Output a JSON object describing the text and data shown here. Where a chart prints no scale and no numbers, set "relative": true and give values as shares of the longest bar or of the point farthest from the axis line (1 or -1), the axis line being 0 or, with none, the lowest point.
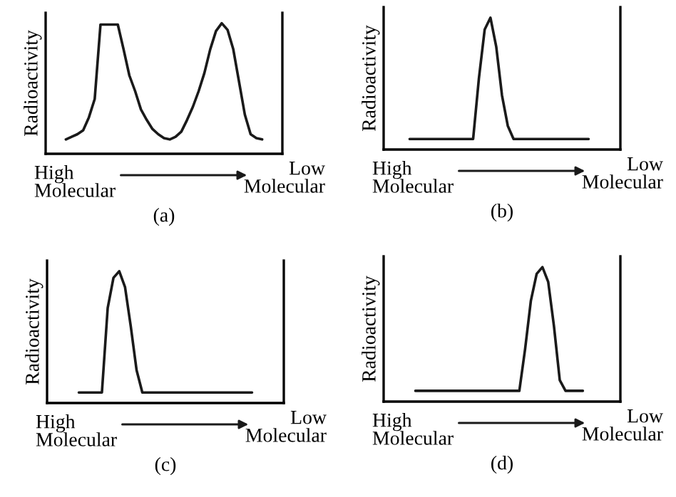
{
  "chart_data": [
    {
      "type": "line",
      "relative": true,
      "ylabel": "Radioactivity",
      "annotations": [
        "High\nMolecular",
        "Low\nMolecular",
        "(a)"
      ],
      "color": "#1a1a1a",
      "categories": [
        null,
        null,
        null,
        null,
        null,
        null,
        null,
        null,
        null,
        null,
        null,
        null,
        null,
        null,
        null,
        null,
        null,
        null,
        null,
        null,
        null,
        null,
        null,
        null,
        null,
        null,
        null,
        null,
        null,
        null,
        null,
        null,
        null,
        null,
        null,
        null,
        null,
        null,
        null,
        null,
        null
      ],
      "values": [
        null,
        null,
        null,
        0.11,
        0.13,
        0.15,
        0.18,
        0.28,
        0.42,
        0.99,
        0.99,
        0.99,
        0.99,
        0.8,
        0.6,
        0.48,
        0.34,
        0.26,
        0.19,
        0.15,
        0.12,
        0.11,
        0.13,
        0.17,
        0.26,
        0.36,
        0.48,
        0.62,
        0.8,
        0.94,
        1.0,
        0.95,
        0.8,
        0.55,
        0.3,
        0.15,
        0.12,
        0.11,
        null,
        null,
        null
      ]
    },
    {
      "type": "line",
      "relative": true,
      "ylabel": "Radioactivity",
      "annotations": [
        "High\nMolecular",
        "Low\nMolecular",
        "(b)"
      ],
      "color": "#1a1a1a",
      "categories": [
        null,
        null,
        null,
        null,
        null,
        null,
        null,
        null,
        null,
        null,
        null,
        null,
        null,
        null,
        null,
        null,
        null,
        null,
        null,
        null,
        null,
        null,
        null,
        null,
        null,
        null,
        null,
        null,
        null,
        null,
        null,
        null,
        null,
        null,
        null,
        null,
        null,
        null,
        null,
        null,
        null
      ],
      "values": [
        null,
        null,
        null,
        null,
        0.08,
        0.08,
        0.08,
        0.08,
        0.08,
        0.08,
        0.08,
        0.08,
        0.08,
        0.08,
        0.08,
        0.08,
        0.54,
        0.91,
        1.0,
        0.78,
        0.41,
        0.18,
        0.08,
        0.08,
        0.08,
        0.08,
        0.08,
        0.08,
        0.08,
        0.08,
        0.08,
        0.08,
        0.08,
        0.08,
        0.08,
        0.08,
        null,
        null,
        null,
        null,
        null
      ]
    },
    {
      "type": "line",
      "relative": true,
      "ylabel": "Radioactivity",
      "annotations": [
        "High\nMolecular",
        "Low\nMolecular",
        "(c)"
      ],
      "color": "#1a1a1a",
      "categories": [
        null,
        null,
        null,
        null,
        null,
        null,
        null,
        null,
        null,
        null,
        null,
        null,
        null,
        null,
        null,
        null,
        null,
        null,
        null,
        null,
        null,
        null,
        null,
        null,
        null,
        null,
        null,
        null,
        null,
        null,
        null,
        null,
        null,
        null,
        null,
        null,
        null,
        null,
        null,
        null,
        null
      ],
      "values": [
        null,
        null,
        null,
        null,
        null,
        0.08,
        0.08,
        0.08,
        0.08,
        0.08,
        0.72,
        0.95,
        1.0,
        0.88,
        0.58,
        0.25,
        0.08,
        0.08,
        0.08,
        0.08,
        0.08,
        0.08,
        0.08,
        0.08,
        0.08,
        0.08,
        0.08,
        0.08,
        0.08,
        0.08,
        0.08,
        0.08,
        0.08,
        0.08,
        0.08,
        0.08,
        null,
        null,
        null,
        null,
        null
      ]
    },
    {
      "type": "line",
      "relative": true,
      "ylabel": "Radioactivity",
      "annotations": [
        "High\nMolecular",
        "Low\nMolecular",
        "(d)"
      ],
      "color": "#1a1a1a",
      "categories": [
        null,
        null,
        null,
        null,
        null,
        null,
        null,
        null,
        null,
        null,
        null,
        null,
        null,
        null,
        null,
        null,
        null,
        null,
        null,
        null,
        null,
        null,
        null,
        null,
        null,
        null,
        null,
        null,
        null,
        null,
        null,
        null,
        null,
        null,
        null,
        null,
        null,
        null,
        null,
        null,
        null
      ],
      "values": [
        null,
        null,
        null,
        null,
        null,
        0.08,
        0.08,
        0.08,
        0.08,
        0.08,
        0.08,
        0.08,
        0.08,
        0.08,
        0.08,
        0.08,
        0.08,
        0.08,
        0.08,
        0.08,
        0.08,
        0.08,
        0.08,
        0.08,
        0.39,
        0.75,
        0.95,
        1.0,
        0.89,
        0.56,
        0.16,
        0.08,
        0.08,
        0.08,
        0.08,
        null,
        null,
        null,
        null,
        null,
        null
      ]
    }
  ]
}
